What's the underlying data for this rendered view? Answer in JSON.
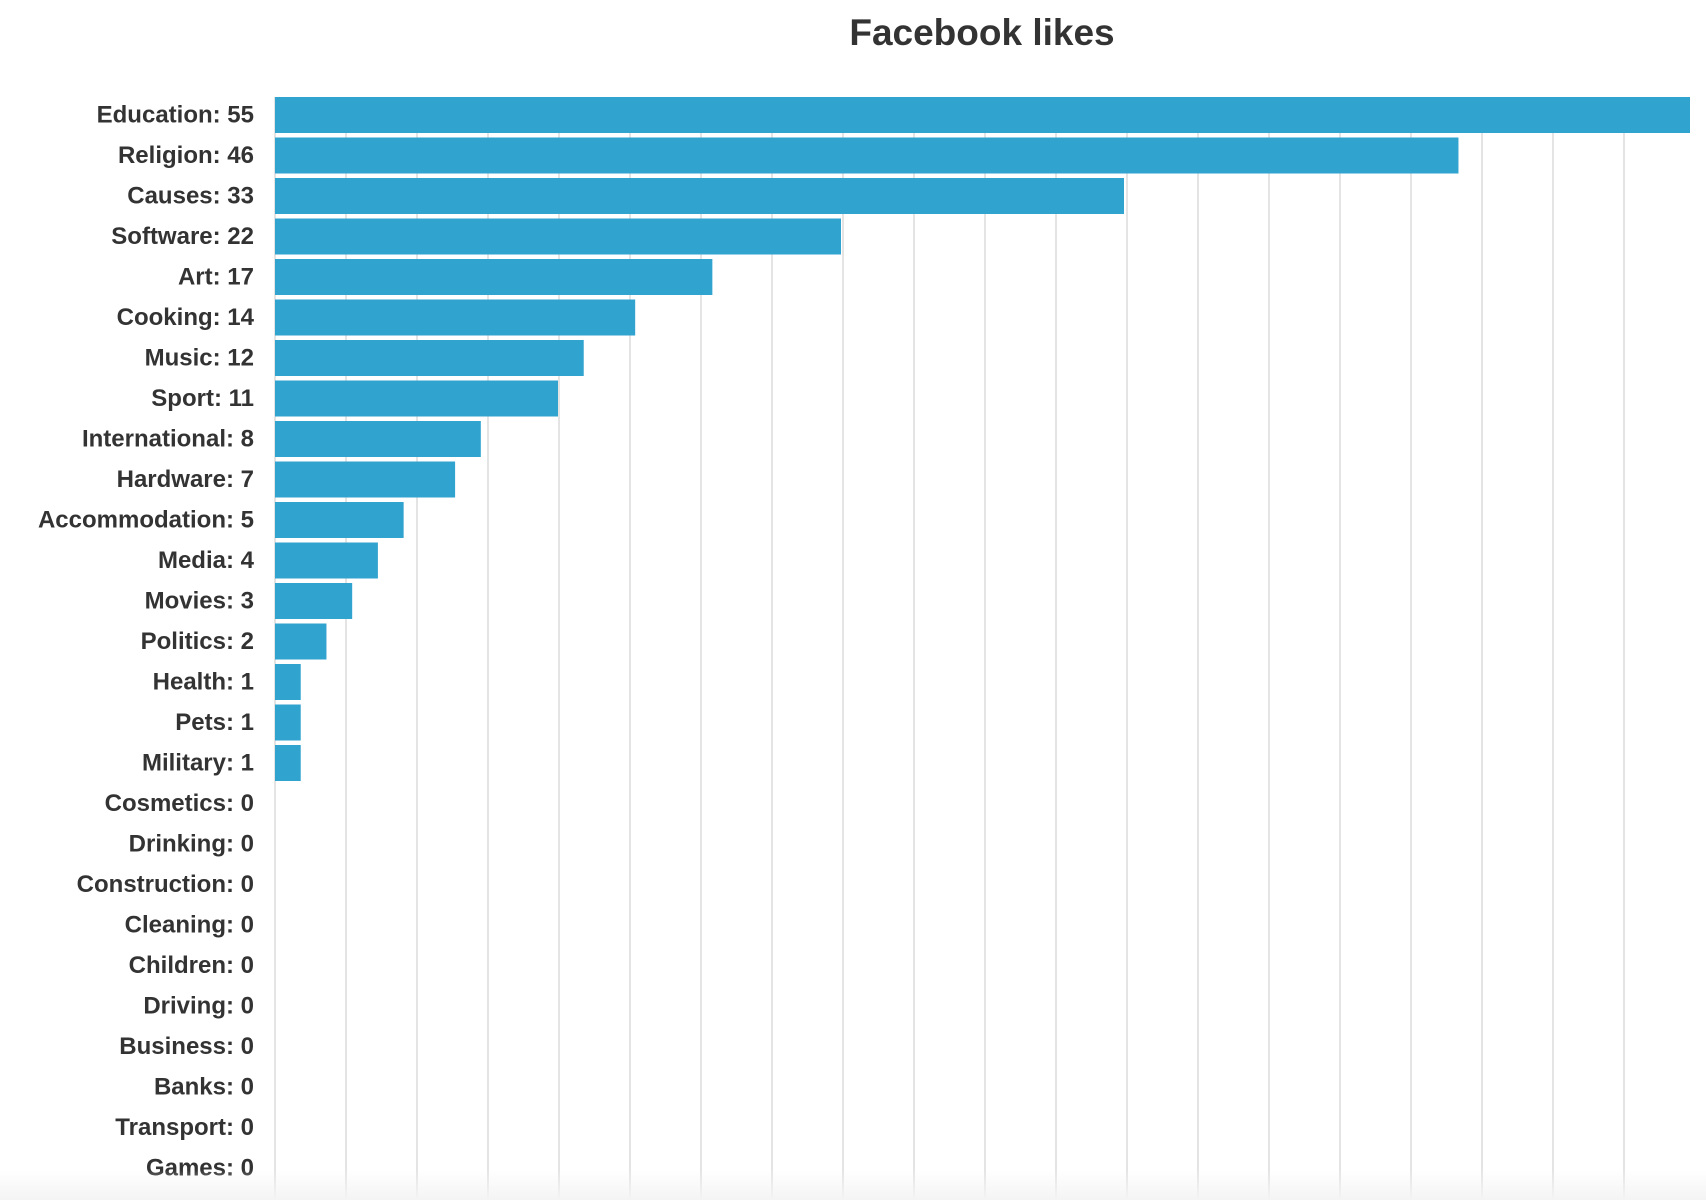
{
  "chart_data": {
    "type": "bar",
    "orientation": "horizontal",
    "title": "Facebook likes",
    "xlabel": "",
    "ylabel": "",
    "categories": [
      "Education",
      "Religion",
      "Causes",
      "Software",
      "Art",
      "Cooking",
      "Music",
      "Sport",
      "International",
      "Hardware",
      "Accommodation",
      "Media",
      "Movies",
      "Politics",
      "Health",
      "Pets",
      "Military",
      "Cosmetics",
      "Drinking",
      "Construction",
      "Cleaning",
      "Children",
      "Driving",
      "Business",
      "Banks",
      "Transport",
      "Games"
    ],
    "values": [
      55,
      46,
      33,
      22,
      17,
      14,
      12,
      11,
      8,
      7,
      5,
      4,
      3,
      2,
      1,
      1,
      1,
      0,
      0,
      0,
      0,
      0,
      0,
      0,
      0,
      0,
      0
    ],
    "labels": [
      "Education: 55",
      "Religion: 46",
      "Causes: 33",
      "Software: 22",
      "Art: 17",
      "Cooking: 14",
      "Music: 12",
      "Sport: 11",
      "International: 8",
      "Hardware: 7",
      "Accommodation: 5",
      "Media: 4",
      "Movies: 3",
      "Politics: 2",
      "Health: 1",
      "Pets: 1",
      "Military: 1",
      "Cosmetics: 0",
      "Drinking: 0",
      "Construction: 0",
      "Cleaning: 0",
      "Children: 0",
      "Driving: 0",
      "Business: 0",
      "Banks: 0",
      "Transport: 0",
      "Games: 0"
    ],
    "xlim": [
      0,
      55
    ],
    "grid": true,
    "legend": "none",
    "colors": {
      "bar": "#31a3cf",
      "grid": "#dcdcdc",
      "text": "#333333"
    }
  }
}
